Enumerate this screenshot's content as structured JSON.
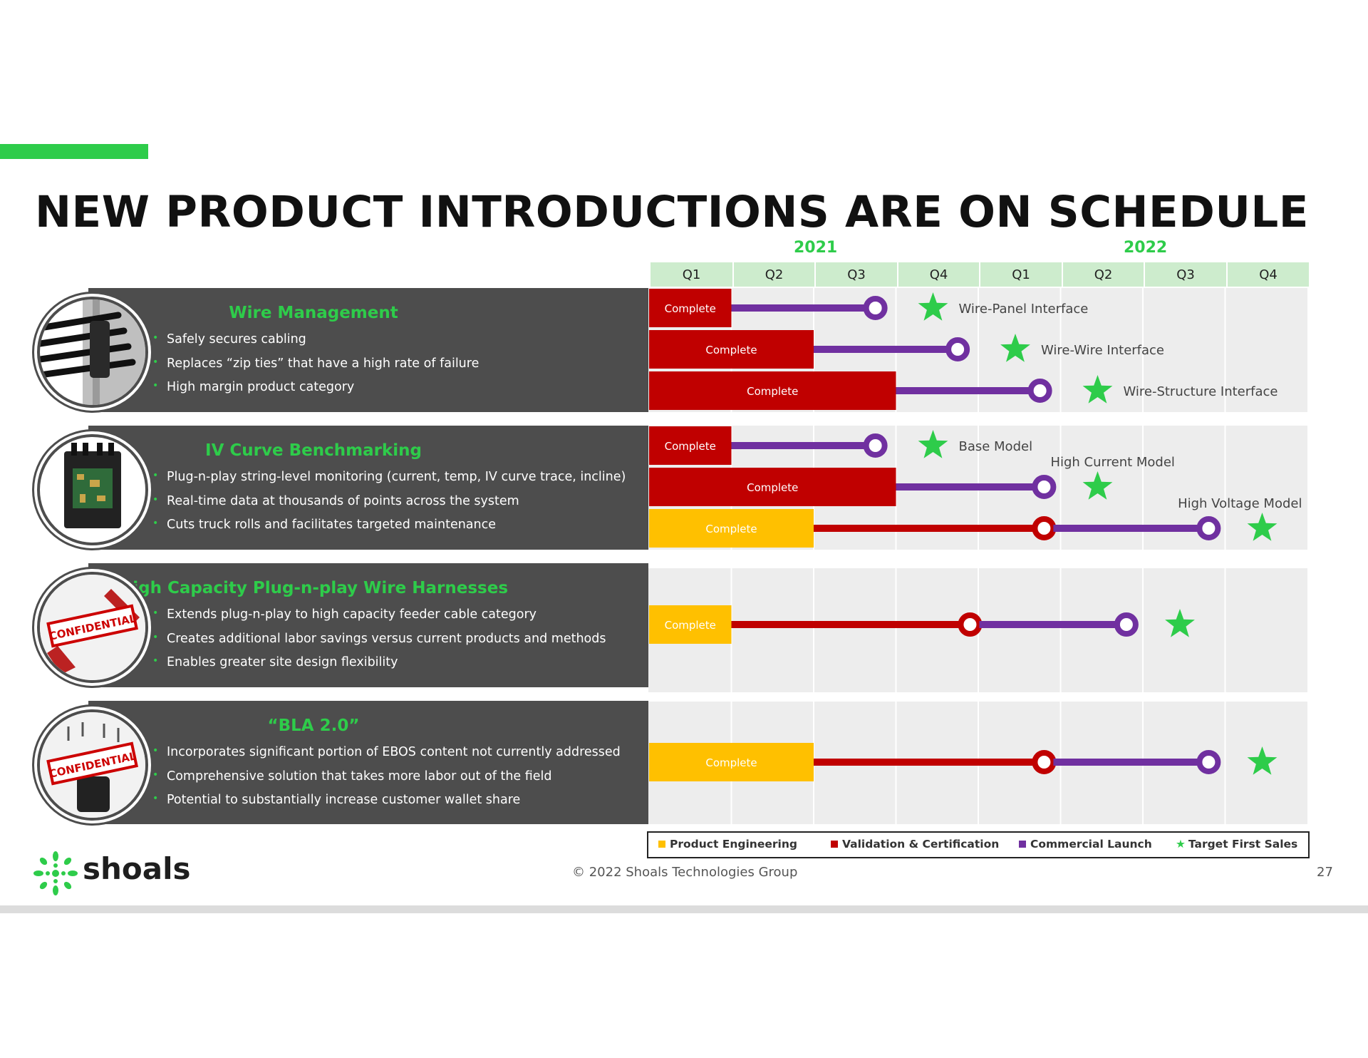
{
  "title": "NEW PRODUCT INTRODUCTIONS ARE ON SCHEDULE",
  "years": [
    "2021",
    "2022"
  ],
  "quarters": [
    "Q1",
    "Q2",
    "Q3",
    "Q4",
    "Q1",
    "Q2",
    "Q3",
    "Q4"
  ],
  "complete_label": "Complete",
  "colors": {
    "accent": "#2ecc4a",
    "product_engineering": "#ffc000",
    "validation_certification": "#c00000",
    "commercial_launch": "#7030a0",
    "target_first_sales": "#2ecc4a",
    "card_bg": "#4d4d4d"
  },
  "categories": [
    {
      "title": "Wire Management",
      "bullets": [
        "Safely secures cabling",
        "Replaces “zip ties” that have a high rate of failure",
        "High margin product category"
      ],
      "image_icon": "cable-clip-photo"
    },
    {
      "title": "IV Curve Benchmarking",
      "bullets": [
        "Plug-n-play string-level monitoring (current, temp, IV curve trace, incline)",
        "Real-time data at thousands of points across the system",
        "Cuts truck rolls and facilitates targeted maintenance"
      ],
      "image_icon": "circuit-board-photo"
    },
    {
      "title": "High Capacity Plug-n-play Wire Harnesses",
      "bullets": [
        "Extends plug-n-play to high capacity feeder cable category",
        "Creates additional labor savings versus current products and methods",
        "Enables greater site design flexibility"
      ],
      "image_icon": "confidential-stamp",
      "stamp_text": "CONFIDENTIAL"
    },
    {
      "title": "“BLA 2.0”",
      "bullets": [
        "Incorporates significant portion of EBOS content not currently addressed",
        "Comprehensive solution that takes more labor out of the field",
        "Potential to substantially increase customer wallet share"
      ],
      "image_icon": "confidential-stamp",
      "stamp_text": "CONFIDENTIAL"
    }
  ],
  "gantt_rows": [
    {
      "group": 0,
      "complete_quarters": 1,
      "complete_phase": "validation",
      "validation_end": 1,
      "launch_end": 2.75,
      "star_at": 3.45,
      "label": "Wire-Panel Interface"
    },
    {
      "group": 0,
      "complete_quarters": 2,
      "complete_phase": "validation",
      "validation_end": 2,
      "launch_end": 3.75,
      "star_at": 4.45,
      "label": "Wire-Wire Interface"
    },
    {
      "group": 0,
      "complete_quarters": 3,
      "complete_phase": "validation",
      "validation_end": 3,
      "launch_end": 4.75,
      "star_at": 5.45,
      "label": "Wire-Structure Interface"
    },
    {
      "group": 1,
      "complete_quarters": 1,
      "complete_phase": "validation",
      "validation_end": 1,
      "launch_end": 2.75,
      "star_at": 3.45,
      "label": "Base Model"
    },
    {
      "group": 1,
      "complete_quarters": 3,
      "complete_phase": "validation",
      "validation_end": 3,
      "launch_end": 4.8,
      "star_at": 5.45,
      "label": "High Current Model"
    },
    {
      "group": 1,
      "complete_quarters": 2,
      "complete_phase": "engineering",
      "validation_end": 4.8,
      "launch_end": 6.8,
      "star_at": 7.45,
      "label": "High Voltage Model"
    },
    {
      "group": 2,
      "complete_quarters": 1,
      "complete_phase": "engineering",
      "validation_end": 3.9,
      "launch_end": 5.8,
      "star_at": 6.45,
      "label": ""
    },
    {
      "group": 3,
      "complete_quarters": 2,
      "complete_phase": "engineering",
      "validation_end": 4.8,
      "launch_end": 6.8,
      "star_at": 7.45,
      "label": ""
    }
  ],
  "legend": {
    "product_engineering": "Product Engineering",
    "validation_certification": "Validation & Certification",
    "commercial_launch": "Commercial Launch",
    "target_first_sales": "Target First Sales"
  },
  "footer": {
    "logo_text": "shoals",
    "copyright": "© 2022 Shoals Technologies Group",
    "page_number": "27"
  }
}
